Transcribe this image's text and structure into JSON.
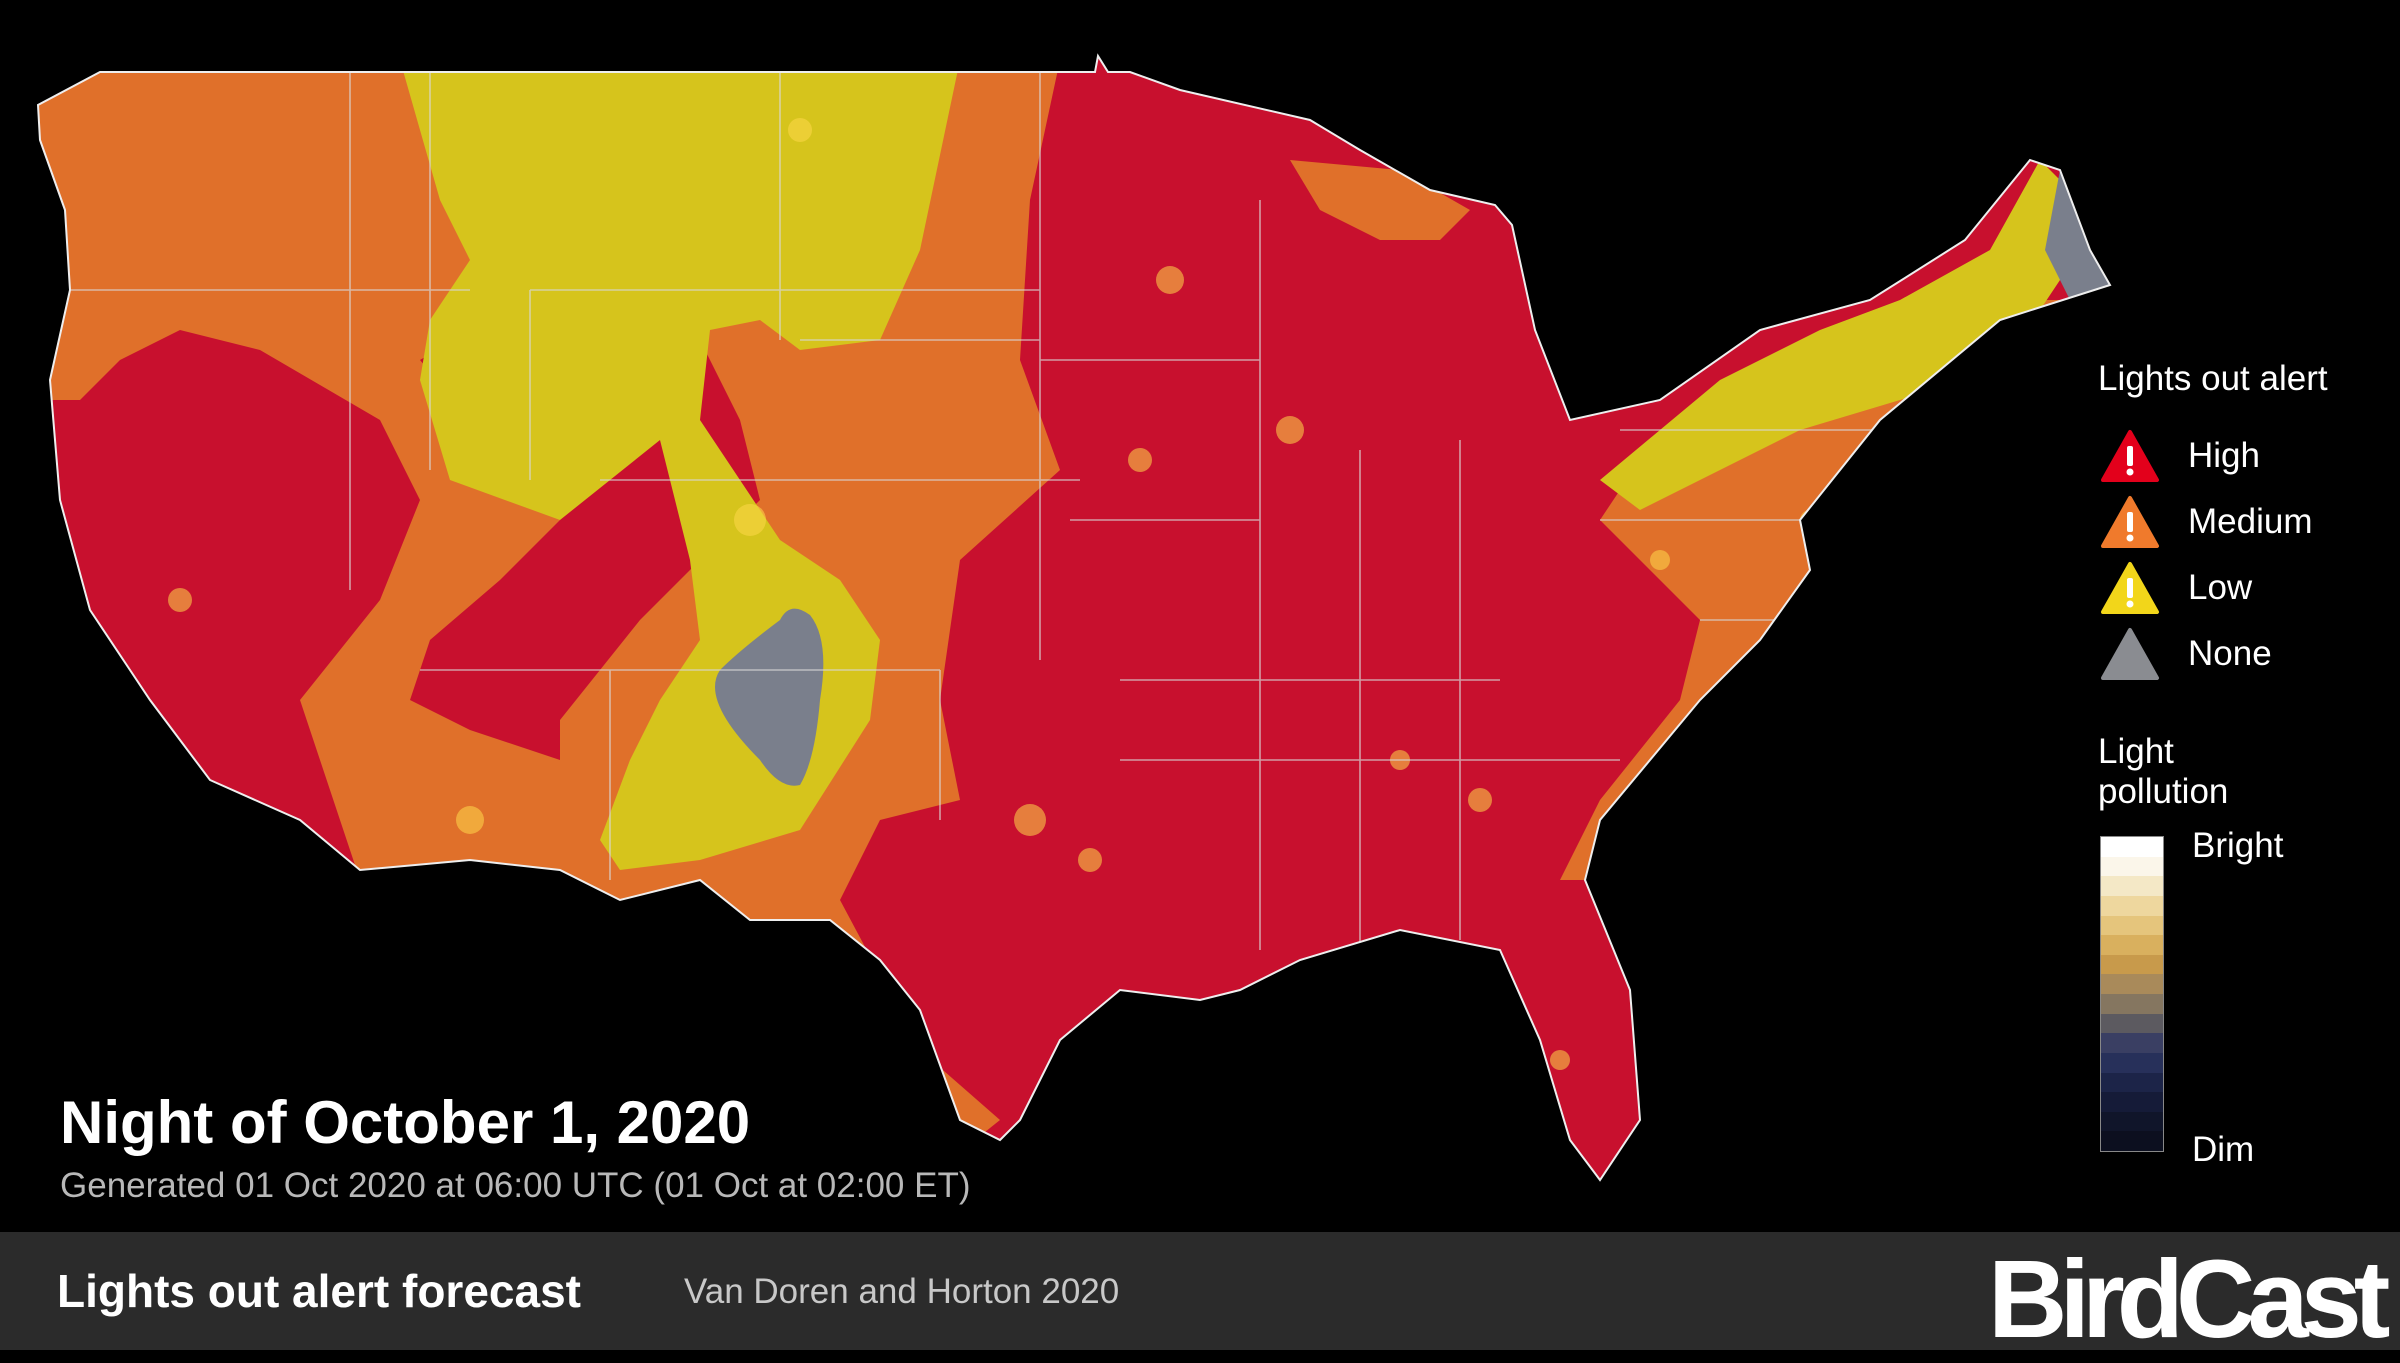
{
  "map": {
    "region": "Contiguous United States",
    "colors": {
      "high": "#c8102e",
      "medium": "#e0702a",
      "low": "#d6c41c",
      "none": "#7a7f8c",
      "background": "#000000"
    }
  },
  "legend": {
    "title": "Lights out alert",
    "items": [
      {
        "label": "High",
        "color": "#e3001b",
        "icon": "warning-triangle-icon"
      },
      {
        "label": "Medium",
        "color": "#f07a2c",
        "icon": "warning-triangle-icon"
      },
      {
        "label": "Low",
        "color": "#f2d61a",
        "icon": "warning-triangle-icon"
      },
      {
        "label": "None",
        "color": "#8a8c91",
        "icon": "triangle-icon"
      }
    ],
    "light_pollution": {
      "title": "Light pollution",
      "high_label": "Bright",
      "low_label": "Dim",
      "colors": [
        "#ffffff",
        "#fbf6ea",
        "#f4e8c6",
        "#eed79e",
        "#e5c57c",
        "#d9b05e",
        "#c89a4b",
        "#a98a5a",
        "#857660",
        "#5c5a60",
        "#3a3f63",
        "#27305a",
        "#1c2448",
        "#151b38",
        "#10152a",
        "#0c0f1f"
      ]
    }
  },
  "header": {
    "title": "Night of October 1, 2020",
    "generated": "Generated 01 Oct 2020 at 06:00 UTC (01 Oct at 02:00 ET)"
  },
  "footer": {
    "title": "Lights out alert forecast",
    "credit": "Van Doren and Horton 2020",
    "logo": "BirdCast"
  }
}
